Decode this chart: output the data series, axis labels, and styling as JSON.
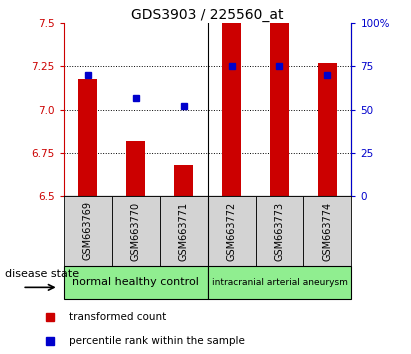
{
  "title": "GDS3903 / 225560_at",
  "samples": [
    "GSM663769",
    "GSM663770",
    "GSM663771",
    "GSM663772",
    "GSM663773",
    "GSM663774"
  ],
  "transformed_counts": [
    7.18,
    6.82,
    6.68,
    7.5,
    7.5,
    7.27
  ],
  "percentile_ranks": [
    70,
    57,
    52,
    75,
    75,
    70
  ],
  "y_min": 6.5,
  "y_max": 7.5,
  "y_ticks": [
    6.5,
    6.75,
    7.0,
    7.25,
    7.5
  ],
  "right_y_ticks": [
    0,
    25,
    50,
    75,
    100
  ],
  "right_y_labels": [
    "0",
    "25",
    "50",
    "75",
    "100%"
  ],
  "bar_color": "#cc0000",
  "percentile_color": "#0000cc",
  "group_labels": [
    "normal healthy control",
    "intracranial arterial aneurysm"
  ],
  "group_bg_color": "#90ee90",
  "group_ranges": [
    [
      0,
      3
    ],
    [
      3,
      6
    ]
  ],
  "sample_box_color": "#d3d3d3",
  "disease_state_label": "disease state",
  "legend_bar_label": "transformed count",
  "legend_percentile_label": "percentile rank within the sample",
  "title_fontsize": 10,
  "tick_fontsize": 7.5,
  "sample_fontsize": 7,
  "group_label_fontsize": 8,
  "group_label_fontsize_small": 6.5,
  "legend_fontsize": 7.5,
  "disease_fontsize": 8
}
